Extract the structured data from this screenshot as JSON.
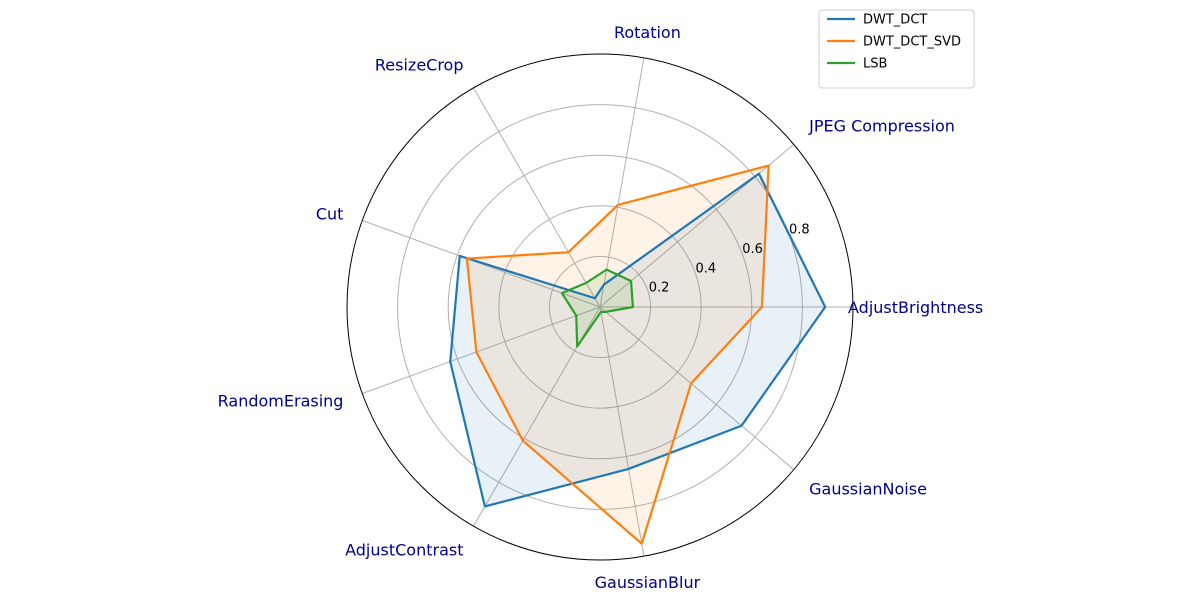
{
  "chart_data": {
    "type": "radar",
    "axes": [
      "AdjustBrightness",
      "JPEG Compression",
      "Rotation",
      "ResizeCrop",
      "Cut",
      "RandomErasing",
      "AdjustContrast",
      "GaussianBlur",
      "GaussianNoise"
    ],
    "rticks": [
      0.2,
      0.4,
      0.6,
      0.8
    ],
    "rtick_labels": [
      "0.2",
      "0.4",
      "0.6",
      "0.8"
    ],
    "rmax": 1.0,
    "grid": true,
    "legend_position": "top-right",
    "series": [
      {
        "name": "DWT_DCT",
        "color": "#1f77b4",
        "values": [
          0.89,
          0.82,
          0.09,
          0.04,
          0.59,
          0.63,
          0.91,
          0.65,
          0.73
        ]
      },
      {
        "name": "DWT_DCT_SVD",
        "color": "#ff7f0e",
        "values": [
          0.64,
          0.87,
          0.41,
          0.25,
          0.56,
          0.52,
          0.61,
          0.95,
          0.47
        ]
      },
      {
        "name": "LSB",
        "color": "#2ca02c",
        "values": [
          0.13,
          0.16,
          0.15,
          0.11,
          0.16,
          0.1,
          0.18,
          0.02,
          0.03
        ]
      }
    ]
  }
}
